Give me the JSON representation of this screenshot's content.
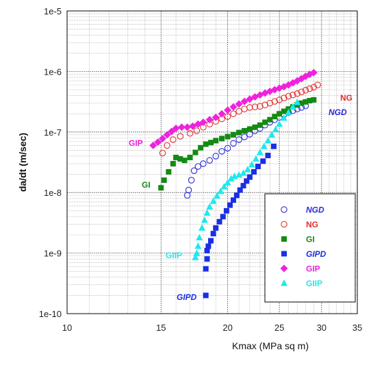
{
  "chart_data": {
    "type": "scatter",
    "xlabel": "Kmax (MPa sq m)",
    "ylabel": "da/dt (m/sec)",
    "x_scale": "log",
    "y_scale": "log",
    "xlim": [
      10,
      35
    ],
    "ylim": [
      1e-10,
      1e-05
    ],
    "x_ticks": [
      10,
      15,
      20,
      25,
      30,
      35
    ],
    "x_tick_labels": [
      "10",
      "15",
      "20",
      "25",
      "30",
      "35"
    ],
    "y_ticks": [
      1e-10,
      1e-09,
      1e-08,
      1e-07,
      1e-06,
      1e-05
    ],
    "y_tick_labels": [
      "1e-10",
      "1e-9",
      "1e-8",
      "1e-7",
      "1e-6",
      "1e-5"
    ],
    "grid": true,
    "legend_position": "bottom-right",
    "series": [
      {
        "name": "NGD",
        "marker": "open-circle",
        "color": "#2a2ad8",
        "italic": true,
        "points": [
          [
            16.8,
            9e-09
          ],
          [
            16.9,
            1.1e-08
          ],
          [
            17.1,
            1.6e-08
          ],
          [
            17.3,
            2.3e-08
          ],
          [
            17.6,
            2.7e-08
          ],
          [
            18.0,
            3e-08
          ],
          [
            18.5,
            3.4e-08
          ],
          [
            19.0,
            4e-08
          ],
          [
            19.5,
            4.8e-08
          ],
          [
            20.0,
            5.4e-08
          ],
          [
            20.5,
            6.5e-08
          ],
          [
            21.0,
            7.5e-08
          ],
          [
            21.5,
            8.3e-08
          ],
          [
            22.0,
            9.2e-08
          ],
          [
            22.5,
            1.05e-07
          ],
          [
            23.0,
            1.15e-07
          ],
          [
            23.5,
            1.3e-07
          ],
          [
            24.0,
            1.45e-07
          ],
          [
            24.5,
            1.6e-07
          ],
          [
            25.0,
            1.75e-07
          ],
          [
            25.5,
            1.95e-07
          ],
          [
            26.0,
            2.1e-07
          ],
          [
            26.5,
            2.25e-07
          ],
          [
            27.0,
            2.4e-07
          ],
          [
            27.5,
            2.55e-07
          ],
          [
            28.0,
            2.7e-07
          ]
        ]
      },
      {
        "name": "NG",
        "marker": "open-circle",
        "color": "#e03030",
        "italic": false,
        "points": [
          [
            15.1,
            4.5e-08
          ],
          [
            15.4,
            6e-08
          ],
          [
            15.8,
            7.5e-08
          ],
          [
            16.3,
            8.5e-08
          ],
          [
            17.0,
            9.5e-08
          ],
          [
            17.5,
            1.05e-07
          ],
          [
            18.0,
            1.2e-07
          ],
          [
            18.5,
            1.35e-07
          ],
          [
            19.0,
            1.5e-07
          ],
          [
            19.5,
            1.65e-07
          ],
          [
            20.0,
            1.8e-07
          ],
          [
            20.5,
            2e-07
          ],
          [
            21.0,
            2.2e-07
          ],
          [
            21.5,
            2.4e-07
          ],
          [
            22.0,
            2.55e-07
          ],
          [
            22.5,
            2.6e-07
          ],
          [
            23.0,
            2.65e-07
          ],
          [
            23.5,
            2.8e-07
          ],
          [
            24.0,
            3e-07
          ],
          [
            24.5,
            3.2e-07
          ],
          [
            25.0,
            3.4e-07
          ],
          [
            25.5,
            3.65e-07
          ],
          [
            26.0,
            3.9e-07
          ],
          [
            26.5,
            4.1e-07
          ],
          [
            27.0,
            4.3e-07
          ],
          [
            27.5,
            4.6e-07
          ],
          [
            28.0,
            4.9e-07
          ],
          [
            28.5,
            5.2e-07
          ],
          [
            29.0,
            5.5e-07
          ],
          [
            29.5,
            6e-07
          ]
        ]
      },
      {
        "name": "GI",
        "marker": "filled-square",
        "color": "#138a13",
        "italic": false,
        "points": [
          [
            15.0,
            1.2e-08
          ],
          [
            15.2,
            1.6e-08
          ],
          [
            15.5,
            2.2e-08
          ],
          [
            15.8,
            3e-08
          ],
          [
            16.0,
            3.8e-08
          ],
          [
            16.3,
            3.6e-08
          ],
          [
            16.6,
            3.4e-08
          ],
          [
            17.0,
            3.8e-08
          ],
          [
            17.4,
            4.6e-08
          ],
          [
            17.8,
            5.5e-08
          ],
          [
            18.2,
            6.3e-08
          ],
          [
            18.6,
            6.7e-08
          ],
          [
            19.0,
            7.2e-08
          ],
          [
            19.5,
            7.8e-08
          ],
          [
            20.0,
            8.4e-08
          ],
          [
            20.5,
            9e-08
          ],
          [
            21.0,
            9.8e-08
          ],
          [
            21.5,
            1.05e-07
          ],
          [
            22.0,
            1.12e-07
          ],
          [
            22.5,
            1.2e-07
          ],
          [
            23.0,
            1.3e-07
          ],
          [
            23.5,
            1.45e-07
          ],
          [
            24.0,
            1.6e-07
          ],
          [
            24.5,
            1.8e-07
          ],
          [
            25.0,
            2e-07
          ],
          [
            25.5,
            2.2e-07
          ],
          [
            26.0,
            2.4e-07
          ],
          [
            26.5,
            2.6e-07
          ],
          [
            27.0,
            2.8e-07
          ],
          [
            27.5,
            3e-07
          ],
          [
            28.0,
            3.15e-07
          ],
          [
            28.5,
            3.3e-07
          ],
          [
            29.0,
            3.4e-07
          ]
        ]
      },
      {
        "name": "GIPD",
        "marker": "filled-square",
        "color": "#1a2ee6",
        "italic": true,
        "points": [
          [
            18.2,
            2e-10
          ],
          [
            18.2,
            5.5e-10
          ],
          [
            18.3,
            8e-10
          ],
          [
            18.3,
            1.1e-09
          ],
          [
            18.4,
            1.3e-09
          ],
          [
            18.6,
            1.6e-09
          ],
          [
            18.8,
            2.1e-09
          ],
          [
            19.0,
            2.6e-09
          ],
          [
            19.3,
            3.3e-09
          ],
          [
            19.6,
            4e-09
          ],
          [
            19.9,
            5e-09
          ],
          [
            20.2,
            6.2e-09
          ],
          [
            20.5,
            7.5e-09
          ],
          [
            20.8,
            9e-09
          ],
          [
            21.1,
            1.1e-08
          ],
          [
            21.4,
            1.3e-08
          ],
          [
            21.7,
            1.55e-08
          ],
          [
            22.0,
            1.8e-08
          ],
          [
            22.4,
            2.2e-08
          ],
          [
            22.8,
            2.7e-08
          ],
          [
            23.3,
            3.3e-08
          ],
          [
            23.8,
            4.1e-08
          ],
          [
            24.4,
            5.8e-08
          ]
        ]
      },
      {
        "name": "GIP",
        "marker": "filled-diamond",
        "color": "#ee22dd",
        "italic": false,
        "points": [
          [
            14.5,
            6e-08
          ],
          [
            14.8,
            6.8e-08
          ],
          [
            15.1,
            7.8e-08
          ],
          [
            15.4,
            9e-08
          ],
          [
            15.7,
            1.02e-07
          ],
          [
            16.0,
            1.15e-07
          ],
          [
            16.4,
            1.2e-07
          ],
          [
            16.8,
            1.2e-07
          ],
          [
            17.2,
            1.25e-07
          ],
          [
            17.6,
            1.35e-07
          ],
          [
            18.0,
            1.45e-07
          ],
          [
            18.5,
            1.6e-07
          ],
          [
            19.0,
            1.75e-07
          ],
          [
            19.5,
            2e-07
          ],
          [
            20.0,
            2.3e-07
          ],
          [
            20.5,
            2.6e-07
          ],
          [
            21.0,
            2.9e-07
          ],
          [
            21.5,
            3.2e-07
          ],
          [
            22.0,
            3.5e-07
          ],
          [
            22.5,
            3.8e-07
          ],
          [
            23.0,
            4.1e-07
          ],
          [
            23.5,
            4.4e-07
          ],
          [
            24.0,
            4.7e-07
          ],
          [
            24.5,
            5e-07
          ],
          [
            25.0,
            5.3e-07
          ],
          [
            25.5,
            5.6e-07
          ],
          [
            26.0,
            6e-07
          ],
          [
            26.5,
            6.5e-07
          ],
          [
            27.0,
            7e-07
          ],
          [
            27.5,
            7.6e-07
          ],
          [
            28.0,
            8.3e-07
          ],
          [
            28.5,
            9e-07
          ],
          [
            29.0,
            9.6e-07
          ]
        ]
      },
      {
        "name": "GIIP",
        "marker": "filled-triangle",
        "color": "#1ee8ee",
        "italic": false,
        "points": [
          [
            17.4,
            8.5e-10
          ],
          [
            17.5,
            1e-09
          ],
          [
            17.6,
            1.3e-09
          ],
          [
            17.7,
            1.8e-09
          ],
          [
            17.9,
            2.6e-09
          ],
          [
            18.1,
            3.5e-09
          ],
          [
            18.3,
            4.6e-09
          ],
          [
            18.5,
            5.8e-09
          ],
          [
            18.8,
            7.2e-09
          ],
          [
            19.1,
            8.8e-09
          ],
          [
            19.4,
            1.05e-08
          ],
          [
            19.7,
            1.25e-08
          ],
          [
            20.0,
            1.45e-08
          ],
          [
            20.3,
            1.7e-08
          ],
          [
            20.6,
            1.85e-08
          ],
          [
            21.0,
            1.95e-08
          ],
          [
            21.4,
            2.1e-08
          ],
          [
            21.8,
            2.4e-08
          ],
          [
            22.2,
            2.9e-08
          ],
          [
            22.6,
            3.6e-08
          ],
          [
            23.0,
            4.6e-08
          ],
          [
            23.4,
            5.8e-08
          ],
          [
            23.8,
            7.2e-08
          ],
          [
            24.2,
            9e-08
          ],
          [
            24.6,
            1.1e-07
          ],
          [
            25.0,
            1.35e-07
          ],
          [
            25.5,
            1.7e-07
          ],
          [
            26.0,
            2.1e-07
          ],
          [
            26.5,
            2.6e-07
          ],
          [
            27.0,
            3.1e-07
          ]
        ]
      }
    ],
    "annotations": [
      {
        "text": "NG",
        "series": "NG"
      },
      {
        "text": "NGD",
        "series": "NGD"
      },
      {
        "text": "GIP",
        "series": "GIP"
      },
      {
        "text": "GI",
        "series": "GI"
      },
      {
        "text": "GIIP",
        "series": "GIIP"
      },
      {
        "text": "GIPD",
        "series": "GIPD"
      }
    ]
  }
}
